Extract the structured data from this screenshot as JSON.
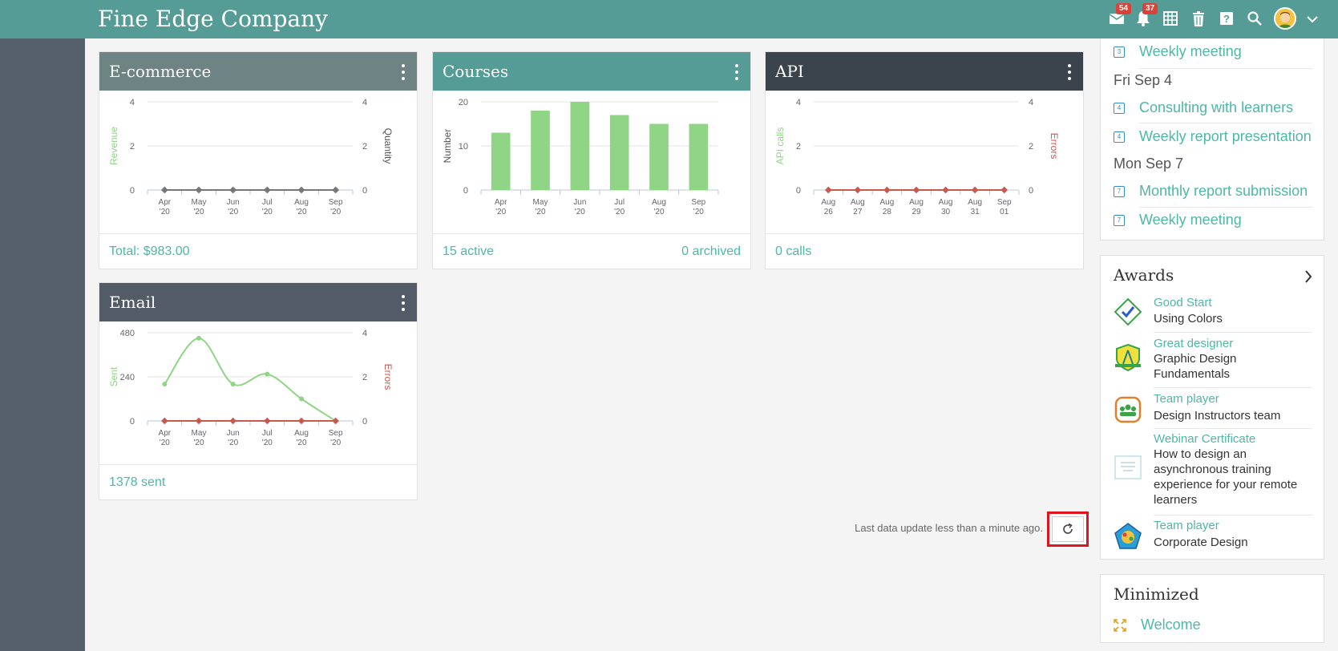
{
  "app": {
    "title": "Fine Edge Company"
  },
  "header": {
    "messages_badge": "54",
    "notifications_badge": "37"
  },
  "widgets": {
    "ecommerce": {
      "title": "E-commerce",
      "footer_left": "Total: $983.00",
      "colors": {
        "header": "#6e8383"
      }
    },
    "courses": {
      "title": "Courses",
      "footer_left": "15 active",
      "footer_right": "0 archived",
      "colors": {
        "header": "#559c96"
      }
    },
    "api": {
      "title": "API",
      "footer_left": "0 calls",
      "colors": {
        "header": "#3b434c"
      }
    },
    "email": {
      "title": "Email",
      "footer_left": "1378 sent",
      "colors": {
        "header": "#535c66"
      }
    }
  },
  "chart_data": [
    {
      "id": "ecommerce",
      "type": "line",
      "categories": [
        "Apr '20",
        "May '20",
        "Jun '20",
        "Jul '20",
        "Aug '20",
        "Sep '20"
      ],
      "series": [
        {
          "name": "Revenue",
          "values": [
            0,
            0,
            0,
            0,
            0,
            0
          ],
          "color": "#777777"
        },
        {
          "name": "Quantity",
          "values": [
            0,
            0,
            0,
            0,
            0,
            0
          ],
          "color": "#777777"
        }
      ],
      "ylabel": "Revenue",
      "y2label": "Quantity",
      "ylim": [
        0,
        4
      ],
      "y2lim": [
        0,
        4
      ],
      "yticks": [
        "0",
        "2",
        "4"
      ],
      "y2ticks": [
        "0",
        "2",
        "4"
      ]
    },
    {
      "id": "courses",
      "type": "bar",
      "categories": [
        "Apr '20",
        "May '20",
        "Jun '20",
        "Jul '20",
        "Aug '20",
        "Sep '20"
      ],
      "values": [
        13,
        18,
        20,
        17,
        15,
        15
      ],
      "ylabel": "Number",
      "ylim": [
        0,
        20
      ],
      "yticks": [
        "0",
        "10",
        "20"
      ],
      "color": "#8fd585"
    },
    {
      "id": "api",
      "type": "line",
      "categories": [
        "Aug 26",
        "Aug 27",
        "Aug 28",
        "Aug 29",
        "Aug 30",
        "Aug 31",
        "Sep 01"
      ],
      "series": [
        {
          "name": "API calls",
          "values": [
            0,
            0,
            0,
            0,
            0,
            0,
            0
          ],
          "color": "#8fd585"
        },
        {
          "name": "Errors",
          "values": [
            0,
            0,
            0,
            0,
            0,
            0,
            0
          ],
          "color": "#c9594e"
        }
      ],
      "ylabel": "API calls",
      "y2label": "Errors",
      "ylim": [
        0,
        4
      ],
      "y2lim": [
        0,
        4
      ],
      "yticks": [
        "0",
        "2",
        "4"
      ],
      "y2ticks": [
        "0",
        "2",
        "4"
      ]
    },
    {
      "id": "email",
      "type": "line",
      "categories": [
        "Apr '20",
        "May '20",
        "Jun '20",
        "Jul '20",
        "Aug '20",
        "Sep '20"
      ],
      "series": [
        {
          "name": "Sent",
          "values": [
            200,
            450,
            200,
            255,
            120,
            0
          ],
          "color": "#8fd585"
        },
        {
          "name": "Errors",
          "values": [
            0,
            0,
            0,
            0,
            0,
            0
          ],
          "color": "#c9594e"
        }
      ],
      "ylabel": "Sent",
      "y2label": "Errors",
      "ylim": [
        0,
        480
      ],
      "y2lim": [
        0,
        4
      ],
      "yticks": [
        "0",
        "240",
        "480"
      ],
      "y2ticks": [
        "0",
        "2",
        "4"
      ]
    }
  ],
  "calendar": {
    "items": [
      {
        "kind": "event",
        "icon_num": "3",
        "label": "Weekly meeting"
      },
      {
        "kind": "day",
        "label": "Fri Sep 4"
      },
      {
        "kind": "event",
        "icon_num": "4",
        "label": "Consulting with learners"
      },
      {
        "kind": "event",
        "icon_num": "4",
        "label": "Weekly report presentation"
      },
      {
        "kind": "day",
        "label": "Mon Sep 7"
      },
      {
        "kind": "event",
        "icon_num": "7",
        "label": "Monthly report submission"
      },
      {
        "kind": "event",
        "icon_num": "7",
        "label": "Weekly meeting"
      }
    ]
  },
  "awards": {
    "title": "Awards",
    "items": [
      {
        "name": "Good Start",
        "desc": "Using Colors",
        "icon": "checkmark-badge-icon"
      },
      {
        "name": "Great designer",
        "desc": "Graphic Design Fundamentals",
        "icon": "compass-shield-icon"
      },
      {
        "name": "Team player",
        "desc": "Design Instructors team",
        "icon": "team-badge-icon"
      },
      {
        "name": "Webinar Certificate",
        "desc": "How to design an asynchronous training experience for your remote learners",
        "icon": "certificate-icon"
      },
      {
        "name": "Team player",
        "desc": "Corporate Design",
        "icon": "pentagon-badge-icon"
      }
    ]
  },
  "minimized": {
    "title": "Minimized",
    "items": [
      {
        "label": "Welcome"
      }
    ]
  },
  "status": {
    "last_update": "Last data update less than a minute ago."
  }
}
